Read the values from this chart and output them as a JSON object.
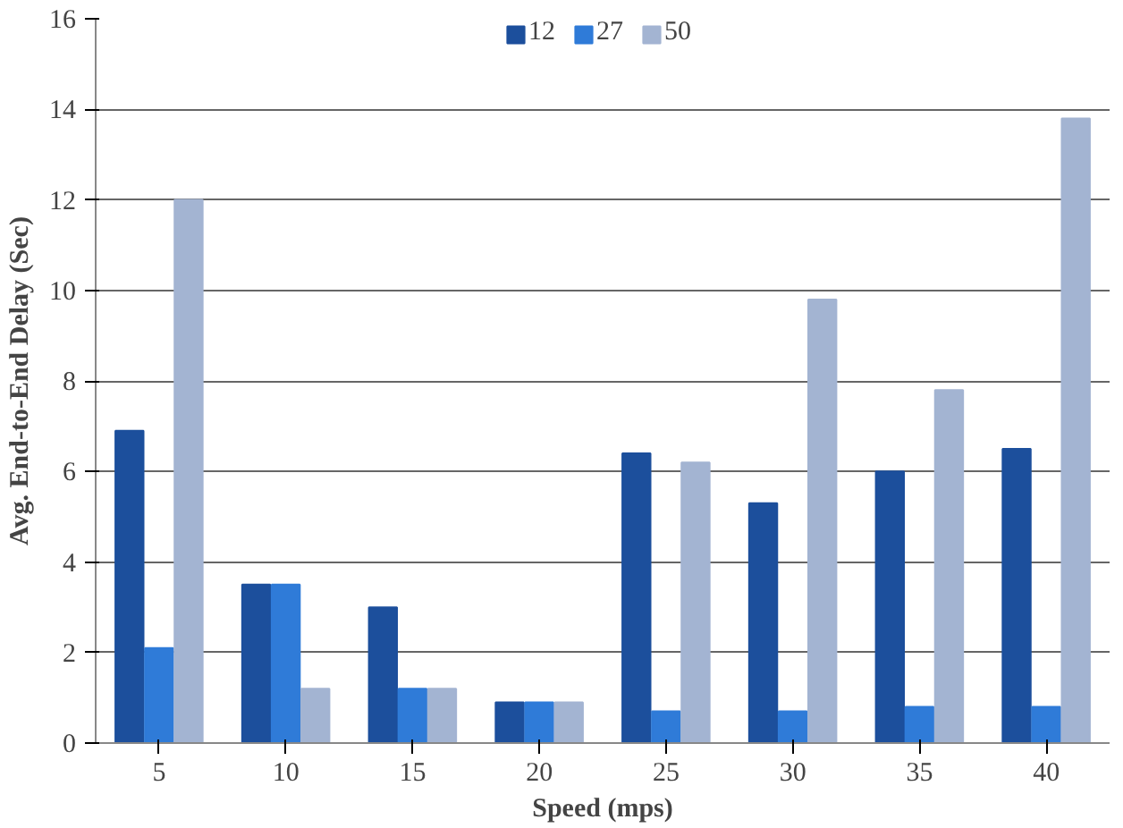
{
  "chart_data": {
    "type": "bar",
    "xlabel": "Speed (mps)",
    "ylabel": "Avg. End-to-End Delay (Sec)",
    "categories": [
      "5",
      "10",
      "15",
      "20",
      "25",
      "30",
      "35",
      "40"
    ],
    "series": [
      {
        "name": "12",
        "color": "#1c4f9c",
        "values": [
          6.9,
          3.5,
          3.0,
          0.9,
          6.4,
          5.3,
          6.0,
          6.5
        ]
      },
      {
        "name": "27",
        "color": "#2f7bd8",
        "values": [
          2.1,
          3.5,
          1.2,
          0.9,
          0.7,
          0.7,
          0.8,
          0.8
        ]
      },
      {
        "name": "50",
        "color": "#a3b4d2",
        "values": [
          12.0,
          1.2,
          1.2,
          0.9,
          6.2,
          9.8,
          7.8,
          13.8
        ]
      }
    ],
    "ylim": [
      0,
      16
    ],
    "yticks": [
      0,
      2,
      4,
      6,
      8,
      10,
      12,
      14,
      16
    ],
    "grid": "y",
    "legend": "top"
  }
}
